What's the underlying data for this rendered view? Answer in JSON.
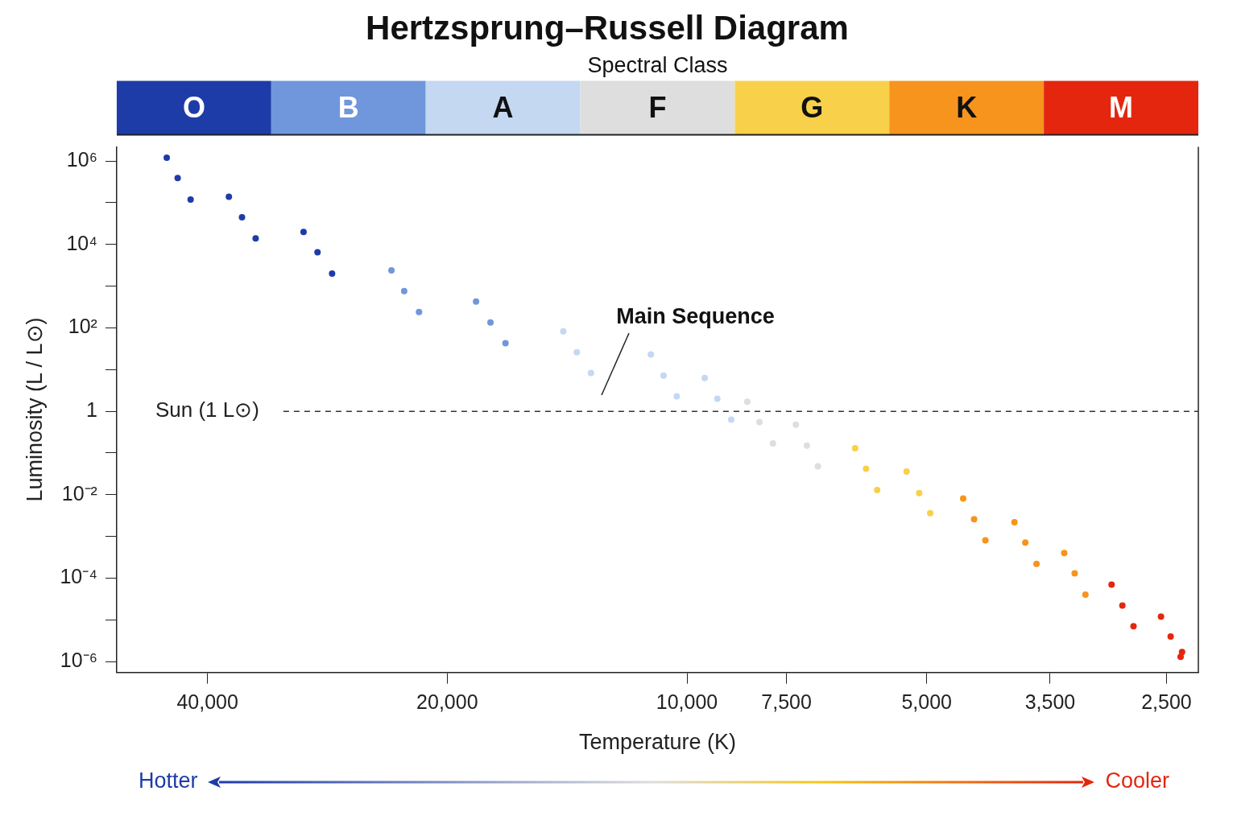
{
  "chart_data": {
    "type": "scatter",
    "title": "Hertzsprung–Russell Diagram",
    "legend_title": "Spectral Class",
    "legend": "top",
    "xlabel": "Temperature (K)",
    "ylabel": "Luminosity (L / L⊙)",
    "log": "xy",
    "marker": "circle",
    "xlim": [
      52000,
      2280
    ],
    "ylim": [
      5.5e-07,
      2200000.0
    ],
    "xticks": [
      {
        "value": 40000,
        "label": "40,000"
      },
      {
        "value": 20000,
        "label": "20,000"
      },
      {
        "value": 10000,
        "label": "10,000"
      },
      {
        "value": 7500,
        "label": "7,500"
      },
      {
        "value": 5000,
        "label": "5,000"
      },
      {
        "value": 3500,
        "label": "3,500"
      },
      {
        "value": 2500,
        "label": "2,500"
      }
    ],
    "yticks": [
      {
        "value": 1000000.0,
        "label": "10⁶"
      },
      {
        "value": 100000.0,
        "label": null
      },
      {
        "value": 10000.0,
        "label": "10⁴"
      },
      {
        "value": 1000.0,
        "label": null
      },
      {
        "value": 100,
        "label": "10²"
      },
      {
        "value": 10,
        "label": null
      },
      1,
      {
        "value": 0.1,
        "label": null
      },
      {
        "value": 0.01,
        "label": "10⁻²"
      },
      {
        "value": 0.001,
        "label": null
      },
      {
        "value": 0.0001,
        "label": "10⁻⁴"
      },
      {
        "value": 1e-05,
        "label": null
      },
      {
        "value": 1e-06,
        "label": "10⁻⁶"
      }
    ],
    "ref_lines": [
      {
        "axis": "y",
        "value": 1,
        "label": "Sun (1 L⊙)",
        "line_style": "dashed",
        "color": "#333333"
      }
    ],
    "annotations": [
      "Main Sequence",
      "Hotter",
      "Cooler"
    ],
    "series": [
      {
        "name": "O",
        "color": "#1e3ca8",
        "x": [
          43600,
          45000,
          42000,
          36200,
          37600,
          34800,
          29100,
          30300,
          27900
        ],
        "values": [
          390000,
          1200000,
          120000,
          45000,
          140000,
          14000,
          6500,
          20000,
          2000
        ]
      },
      {
        "name": "B",
        "color": "#7096dc",
        "x": [
          22650,
          23500,
          21700,
          17650,
          18400,
          16900
        ],
        "values": [
          760,
          2400,
          240,
          135,
          430,
          43
        ]
      },
      {
        "name": "A",
        "color": "#c4d8f2",
        "x": [
          13750,
          14300,
          13200,
          10700,
          11100,
          10300,
          9160,
          9500,
          8800
        ],
        "values": [
          26,
          83,
          8.3,
          7.2,
          23,
          2.3,
          2.0,
          6.3,
          0.63
        ]
      },
      {
        "name": "F",
        "color": "#dedede",
        "x": [
          8110,
          8400,
          7800,
          7070,
          7300,
          6850
        ],
        "values": [
          0.55,
          1.7,
          0.17,
          0.15,
          0.48,
          0.048
        ]
      },
      {
        "name": "G",
        "color": "#f8d04a",
        "x": [
          5960,
          6150,
          5770,
          5110,
          5300,
          4950
        ],
        "values": [
          0.042,
          0.13,
          0.013,
          0.011,
          0.036,
          0.0036
        ]
      },
      {
        "name": "K",
        "color": "#f7941d",
        "x": [
          4360,
          4500,
          4220,
          3760,
          3880,
          3640,
          3260,
          3360,
          3160
        ],
        "values": [
          0.0026,
          0.0081,
          0.00081,
          0.00071,
          0.0022,
          0.00022,
          0.00013,
          0.0004,
          4e-05
        ]
      },
      {
        "name": "M",
        "color": "#e4260f",
        "x": [
          2840,
          2930,
          2750,
          2470,
          2540,
          2400,
          2390
        ],
        "values": [
          2.2e-05,
          7e-05,
          7e-06,
          4e-06,
          1.2e-05,
          1.3e-06,
          1.7e-06
        ]
      }
    ]
  }
}
